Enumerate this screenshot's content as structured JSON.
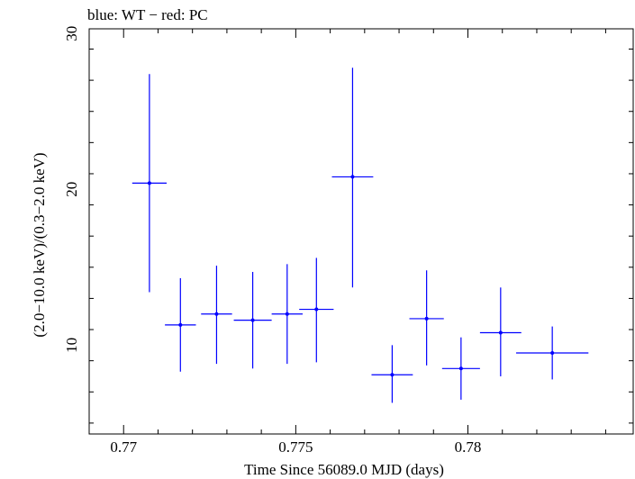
{
  "chart_data": {
    "type": "scatter",
    "title": "blue: WT − red: PC",
    "xlabel": "Time Since 56089.0 MJD (days)",
    "ylabel": "(2.0−10.0 keV)/(0.3−2.0 keV)",
    "xlim": [
      0.769,
      0.7848
    ],
    "ylim": [
      4.3,
      30.3
    ],
    "xticks_major": [
      0.77,
      0.775,
      0.78
    ],
    "xtick_labels": [
      "0.77",
      "0.775",
      "0.78"
    ],
    "yticks_major": [
      10,
      20,
      30
    ],
    "ytick_labels": [
      "10",
      "20",
      "30"
    ],
    "series": [
      {
        "name": "WT",
        "color": "#0000ff",
        "points": [
          {
            "x": 0.77075,
            "xerr": 0.0005,
            "y": 20.4,
            "ylo": 13.4,
            "yhi": 27.4
          },
          {
            "x": 0.77165,
            "xerr": 0.00045,
            "y": 11.3,
            "ylo": 8.3,
            "yhi": 14.3
          },
          {
            "x": 0.7727,
            "xerr": 0.00045,
            "y": 12.0,
            "ylo": 8.8,
            "yhi": 15.1
          },
          {
            "x": 0.77375,
            "xerr": 0.00055,
            "y": 11.6,
            "ylo": 8.5,
            "yhi": 14.7
          },
          {
            "x": 0.77475,
            "xerr": 0.00045,
            "y": 12.0,
            "ylo": 8.8,
            "yhi": 15.2
          },
          {
            "x": 0.7756,
            "xerr": 0.0005,
            "y": 12.3,
            "ylo": 8.9,
            "yhi": 15.6
          },
          {
            "x": 0.77665,
            "xerr": 0.0006,
            "y": 20.8,
            "ylo": 13.7,
            "yhi": 27.8
          },
          {
            "x": 0.7778,
            "xerr": 0.0006,
            "y": 8.1,
            "ylo": 6.3,
            "yhi": 10.0
          },
          {
            "x": 0.7788,
            "xerr": 0.0005,
            "y": 11.7,
            "ylo": 8.7,
            "yhi": 14.8
          },
          {
            "x": 0.7798,
            "xerr": 0.00055,
            "y": 8.5,
            "ylo": 6.5,
            "yhi": 10.5
          },
          {
            "x": 0.78095,
            "xerr": 0.0006,
            "y": 10.8,
            "ylo": 8.0,
            "yhi": 13.7
          },
          {
            "x": 0.78245,
            "xerr": 0.00105,
            "y": 9.5,
            "ylo": 7.8,
            "yhi": 11.2
          }
        ]
      }
    ]
  }
}
